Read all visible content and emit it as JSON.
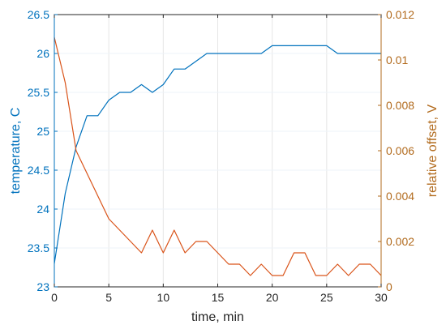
{
  "chart_data": {
    "type": "line",
    "xlabel": "time, min",
    "ylabel_left": "temperature, C",
    "ylabel_right": "relative offset, V",
    "xlim": [
      0,
      30
    ],
    "ylim_left": [
      23,
      26.5
    ],
    "ylim_right": [
      0,
      0.012
    ],
    "xticks": [
      "0",
      "5",
      "10",
      "15",
      "20",
      "25",
      "30"
    ],
    "yticks_left": [
      "23",
      "23.5",
      "24",
      "24.5",
      "25",
      "25.5",
      "26",
      "26.5"
    ],
    "yticks_right": [
      "0",
      "0.002",
      "0.004",
      "0.006",
      "0.008",
      "0.01",
      "0.012"
    ],
    "colors": {
      "left": "#0072bd",
      "right": "#d95319",
      "axis_left": "#0072bd",
      "axis_right": "#b26b1e"
    },
    "series": [
      {
        "axis": "left",
        "color": "#0072bd",
        "x": [
          0,
          1,
          2,
          3,
          4,
          5,
          6,
          7,
          8,
          9,
          10,
          11,
          12,
          13,
          14,
          15,
          16,
          17,
          18,
          19,
          20,
          21,
          22,
          23,
          24,
          25,
          26,
          27,
          28,
          29,
          30
        ],
        "y": [
          23.3,
          24.2,
          24.8,
          25.2,
          25.2,
          25.4,
          25.5,
          25.5,
          25.6,
          25.5,
          25.6,
          25.8,
          25.8,
          25.9,
          26.0,
          26.0,
          26.0,
          26.0,
          26.0,
          26.0,
          26.1,
          26.1,
          26.1,
          26.1,
          26.1,
          26.1,
          26.0,
          26.0,
          26.0,
          26.0,
          26.0
        ]
      },
      {
        "axis": "right",
        "color": "#d95319",
        "x": [
          0,
          1,
          2,
          3,
          4,
          5,
          6,
          7,
          8,
          9,
          10,
          11,
          12,
          13,
          14,
          15,
          16,
          17,
          18,
          19,
          20,
          21,
          22,
          23,
          24,
          25,
          26,
          27,
          28,
          29,
          30
        ],
        "y": [
          0.011,
          0.009,
          0.006,
          0.005,
          0.004,
          0.003,
          0.0025,
          0.002,
          0.0015,
          0.0025,
          0.0015,
          0.0025,
          0.0015,
          0.002,
          0.002,
          0.0015,
          0.001,
          0.001,
          0.0005,
          0.001,
          0.0005,
          0.0005,
          0.0015,
          0.0015,
          0.0005,
          0.0005,
          0.001,
          0.0005,
          0.001,
          0.001,
          0.0005
        ]
      }
    ]
  }
}
